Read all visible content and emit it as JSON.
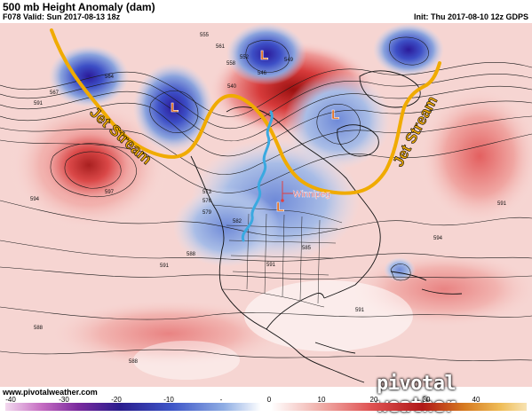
{
  "header": {
    "title": "500 mb Height Anomaly (dam)",
    "valid": "F078 Valid: Sun 2017-08-13 18z",
    "init": "Init: Thu 2017-08-10 12z GDPS"
  },
  "map": {
    "annotations": {
      "jet_stream_label": "Jet Stream",
      "city_label": "Winnipeg",
      "low_symbol": "L"
    },
    "contour_labels": [
      "555",
      "564",
      "561",
      "558",
      "552",
      "546",
      "540",
      "549",
      "567",
      "573",
      "576",
      "579",
      "582",
      "585",
      "588",
      "591",
      "594",
      "597"
    ]
  },
  "footer": {
    "site": "www.pivotalweather.com",
    "brand": "pivotal weather"
  },
  "colorbar": {
    "ticks": [
      "-40",
      "-30",
      "-20",
      "-10",
      "0",
      "10",
      "20",
      "30",
      "40"
    ],
    "minus_tick": "-",
    "zero_tick": "0"
  },
  "colors": {
    "jet_stream": "#f0ab00",
    "flow_line": "#3aa9e0",
    "low_label": "#e05a00",
    "negative_anomaly": "#3b4fc2",
    "positive_anomaly": "#e03a3a"
  }
}
